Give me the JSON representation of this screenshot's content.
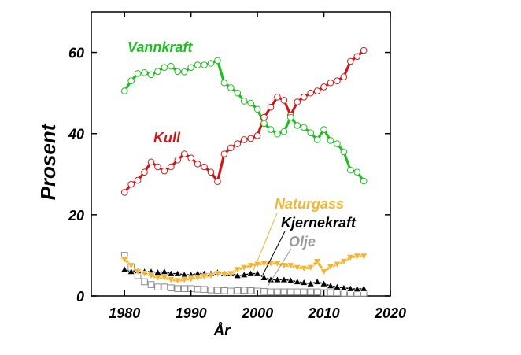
{
  "chart_data": {
    "type": "line",
    "title": "",
    "xlabel": "År",
    "ylabel": "Prosent",
    "xlim": [
      1975,
      2020
    ],
    "ylim": [
      0,
      70
    ],
    "x_ticks": [
      "1980",
      "1990",
      "2000",
      "2010",
      "2020"
    ],
    "y_ticks": [
      "0",
      "20",
      "40",
      "60"
    ],
    "grid": false,
    "legend": "inline labels",
    "series": [
      {
        "name": "Vannkraft",
        "color": "#1fbf1f",
        "marker": "circle",
        "x": [
          1980,
          1981,
          1982,
          1983,
          1984,
          1985,
          1986,
          1987,
          1988,
          1989,
          1990,
          1991,
          1992,
          1993,
          1994,
          1995,
          1996,
          1997,
          1998,
          1999,
          2000,
          2001,
          2002,
          2003,
          2004,
          2005,
          2006,
          2007,
          2008,
          2009,
          2010,
          2011,
          2012,
          2013,
          2014,
          2015,
          2016
        ],
        "y": [
          50.5,
          53,
          54.8,
          55,
          54.5,
          55.3,
          56.3,
          56.6,
          55.3,
          55.2,
          56.3,
          56.9,
          56.9,
          57.3,
          58,
          52.5,
          51.3,
          50,
          48,
          47.5,
          46,
          42.5,
          41,
          39.9,
          40.5,
          44,
          42,
          41.5,
          40.2,
          38.5,
          41,
          38.3,
          37.5,
          35.5,
          31,
          30.5,
          28.3
        ]
      },
      {
        "name": "Kull",
        "color": "#cc1a1a",
        "marker": "circle",
        "x": [
          1980,
          1981,
          1982,
          1983,
          1984,
          1985,
          1986,
          1987,
          1988,
          1989,
          1990,
          1991,
          1992,
          1993,
          1994,
          1995,
          1996,
          1997,
          1998,
          1999,
          2000,
          2001,
          2002,
          2003,
          2004,
          2005,
          2006,
          2007,
          2008,
          2009,
          2010,
          2011,
          2012,
          2013,
          2014,
          2015,
          2016
        ],
        "y": [
          25.5,
          27.5,
          28.5,
          30.5,
          33,
          31.8,
          30.8,
          31.8,
          33.5,
          35,
          34,
          32.5,
          31.8,
          30.5,
          28.2,
          35,
          36.5,
          37.5,
          38.5,
          38.8,
          39.5,
          44,
          46.5,
          49,
          48.2,
          44.5,
          47.8,
          49,
          50,
          50.5,
          51.5,
          52.5,
          53,
          54,
          57.8,
          59,
          60.5
        ]
      },
      {
        "name": "Naturgass",
        "color": "#f5b330",
        "marker": "triangle-down",
        "x": [
          1980,
          1981,
          1982,
          1983,
          1984,
          1985,
          1986,
          1987,
          1988,
          1989,
          1990,
          1991,
          1992,
          1993,
          1994,
          1995,
          1996,
          1997,
          1998,
          1999,
          2000,
          2001,
          2002,
          2003,
          2004,
          2005,
          2006,
          2007,
          2008,
          2009,
          2010,
          2011,
          2012,
          2013,
          2014,
          2015,
          2016
        ],
        "y": [
          9,
          7.5,
          6,
          5.5,
          5,
          4.5,
          4.5,
          4,
          3.8,
          4,
          4.2,
          4.5,
          4.8,
          5,
          5.5,
          5.3,
          5.5,
          6.5,
          7,
          7.5,
          7.8,
          8,
          8,
          8,
          7.5,
          7.5,
          7,
          6.8,
          7,
          8.5,
          6,
          7.2,
          7.8,
          8.5,
          9.5,
          9.8,
          9.8
        ]
      },
      {
        "name": "Kjernekraft",
        "color": "#000000",
        "marker": "triangle-up",
        "x": [
          1980,
          1981,
          1982,
          1983,
          1984,
          1985,
          1986,
          1987,
          1988,
          1989,
          1990,
          1991,
          1992,
          1993,
          1994,
          1995,
          1996,
          1997,
          1998,
          1999,
          2000,
          2001,
          2002,
          2003,
          2004,
          2005,
          2006,
          2007,
          2008,
          2009,
          2010,
          2011,
          2012,
          2013,
          2014,
          2015,
          2016
        ],
        "y": [
          6.5,
          6,
          6.2,
          6,
          6,
          5.8,
          6,
          5.5,
          5.5,
          5.2,
          5.2,
          5.5,
          5.5,
          5.5,
          5.8,
          5.5,
          5.5,
          5,
          5.2,
          5.5,
          5.5,
          4.5,
          4,
          4,
          4,
          3.8,
          3.5,
          3.3,
          3,
          3.5,
          3,
          2.5,
          2.2,
          2,
          1.8,
          1.7,
          1.8
        ]
      },
      {
        "name": "Olje",
        "color": "#9a9a9a",
        "marker": "square",
        "x": [
          1980,
          1981,
          1982,
          1983,
          1984,
          1985,
          1986,
          1987,
          1988,
          1989,
          1990,
          1991,
          1992,
          1993,
          1994,
          1995,
          1996,
          1997,
          1998,
          1999,
          2000,
          2001,
          2002,
          2003,
          2004,
          2005,
          2006,
          2007,
          2008,
          2009,
          2010,
          2011,
          2012,
          2013,
          2014,
          2015,
          2016
        ],
        "y": [
          10,
          7,
          5,
          3.5,
          2.8,
          2.2,
          2.2,
          2,
          1.8,
          1.8,
          1.8,
          1.7,
          1.6,
          1.5,
          1.4,
          1.3,
          1.2,
          1.3,
          1.4,
          1.3,
          1.2,
          1.1,
          1,
          1,
          1,
          1,
          1,
          1,
          1,
          1,
          0.8,
          0.8,
          0.8,
          0.7,
          0.7,
          0.7,
          0.7
        ]
      }
    ],
    "annotations": [
      {
        "text": "Vannkraft",
        "color": "#1fbf1f"
      },
      {
        "text": "Kull",
        "color": "#cc1a1a"
      },
      {
        "text": "Naturgass",
        "color": "#f5b330"
      },
      {
        "text": "Kjernekraft",
        "color": "#000000"
      },
      {
        "text": "Olje",
        "color": "#9a9a9a"
      }
    ]
  }
}
